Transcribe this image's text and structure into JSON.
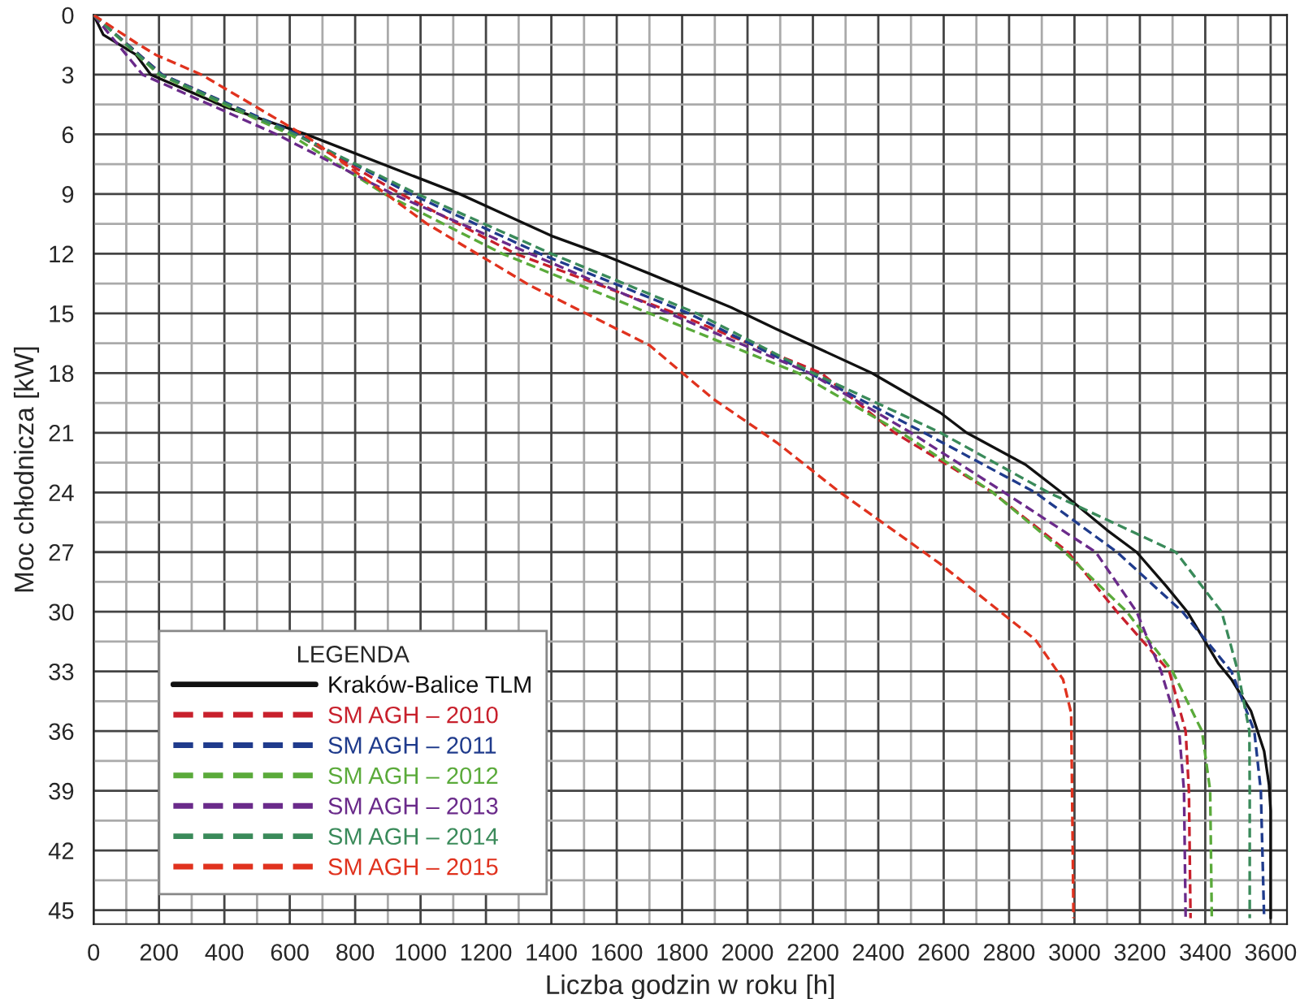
{
  "chart_data": {
    "type": "line",
    "xlabel": "Liczba godzin w roku [h]",
    "ylabel": "Moc chłodnicza [kW]",
    "legend_title": "LEGENDA",
    "legend": "bottom left",
    "grid": true,
    "line_style": "dashed",
    "marker": "none",
    "xlim": [
      0,
      3650
    ],
    "ylim": [
      45.7,
      0
    ],
    "xticks": [
      0,
      {
        "value": 100,
        "label": null
      },
      200,
      {
        "value": 300,
        "label": null
      },
      400,
      {
        "value": 500,
        "label": null
      },
      600,
      {
        "value": 700,
        "label": null
      },
      800,
      {
        "value": 900,
        "label": null
      },
      1000,
      {
        "value": 1100,
        "label": null
      },
      1200,
      {
        "value": 1300,
        "label": null
      },
      1400,
      {
        "value": 1500,
        "label": null
      },
      1600,
      {
        "value": 1700,
        "label": null
      },
      1800,
      {
        "value": 1900,
        "label": null
      },
      2000,
      {
        "value": 2100,
        "label": null
      },
      2200,
      {
        "value": 2300,
        "label": null
      },
      2400,
      {
        "value": 2500,
        "label": null
      },
      2600,
      {
        "value": 2700,
        "label": null
      },
      2800,
      {
        "value": 2900,
        "label": null
      },
      3000,
      {
        "value": 3100,
        "label": null
      },
      3200,
      {
        "value": 3300,
        "label": null
      },
      3400,
      {
        "value": 3500,
        "label": null
      },
      3600
    ],
    "yticks": [
      0,
      {
        "value": 1.5,
        "label": null
      },
      3,
      {
        "value": 4.5,
        "label": null
      },
      6,
      {
        "value": 7.5,
        "label": null
      },
      9,
      {
        "value": 10.5,
        "label": null
      },
      12,
      {
        "value": 13.5,
        "label": null
      },
      15,
      {
        "value": 16.5,
        "label": null
      },
      18,
      {
        "value": 19.5,
        "label": null
      },
      21,
      {
        "value": 22.5,
        "label": null
      },
      24,
      {
        "value": 25.5,
        "label": null
      },
      27,
      {
        "value": 28.5,
        "label": null
      },
      30,
      {
        "value": 31.5,
        "label": null
      },
      33,
      {
        "value": 34.5,
        "label": null
      },
      36,
      {
        "value": 37.5,
        "label": null
      },
      39,
      {
        "value": 40.5,
        "label": null
      },
      42,
      {
        "value": 43.5,
        "label": null
      },
      45
    ],
    "series": [
      {
        "name": "Kraków-Balice TLM",
        "color": "#111111",
        "line_style": "solid",
        "x": [
          0,
          30,
          130,
          175,
          400,
          650,
          1120,
          1400,
          1550,
          1700,
          1950,
          2090,
          2380,
          2590,
          2670,
          2850,
          2960,
          3100,
          3190,
          3280,
          3345,
          3440,
          3480,
          3540,
          3580,
          3595,
          3600,
          3600
        ],
        "values": [
          0,
          1.0,
          2.0,
          3.0,
          4.6,
          6.0,
          9.0,
          11.1,
          12.0,
          13.0,
          14.7,
          15.8,
          18.0,
          20.0,
          21.0,
          22.6,
          24.0,
          25.9,
          27.0,
          28.7,
          30.0,
          32.6,
          33.4,
          35.0,
          37.0,
          38.7,
          40.0,
          45.4
        ]
      },
      {
        "name": "SM AGH – 2010",
        "color": "#c8202c",
        "x": [
          0,
          210,
          620,
          940,
          1290,
          1780,
          2225,
          2450,
          2750,
          2980,
          3130,
          3290,
          3340,
          3350,
          3355
        ],
        "values": [
          0,
          3.0,
          6.0,
          9.0,
          12.0,
          15.0,
          18.0,
          21.0,
          24.0,
          27.0,
          30.0,
          33.0,
          36.0,
          39.0,
          45.4
        ]
      },
      {
        "name": "SM AGH – 2011",
        "color": "#1f3b8c",
        "x": [
          0,
          210,
          625,
          970,
          1365,
          1820,
          2190,
          2540,
          2880,
          3130,
          3330,
          3480,
          3550,
          3570,
          3580
        ],
        "values": [
          0,
          3.0,
          6.0,
          9.0,
          12.0,
          15.0,
          18.0,
          21.0,
          24.0,
          27.0,
          30.0,
          33.0,
          36.0,
          39.0,
          45.4
        ]
      },
      {
        "name": "SM AGH – 2012",
        "color": "#5aaa3a",
        "x": [
          0,
          200,
          600,
          890,
          1250,
          1700,
          2155,
          2470,
          2750,
          2970,
          3160,
          3300,
          3390,
          3415,
          3420
        ],
        "values": [
          0,
          3.0,
          6.0,
          9.0,
          12.0,
          15.0,
          18.0,
          21.0,
          24.0,
          27.0,
          30.0,
          33.0,
          36.0,
          39.0,
          45.4
        ]
      },
      {
        "name": "SM AGH – 2013",
        "color": "#6a2a8a",
        "x": [
          0,
          150,
          560,
          915,
          1335,
          1760,
          2190,
          2500,
          2785,
          3065,
          3190,
          3265,
          3320,
          3335,
          3340
        ],
        "values": [
          0,
          3.0,
          6.0,
          9.0,
          12.0,
          15.0,
          18.0,
          21.0,
          24.0,
          27.0,
          30.0,
          33.0,
          36.0,
          39.0,
          45.4
        ]
      },
      {
        "name": "SM AGH – 2014",
        "color": "#3a8a5a",
        "x": [
          0,
          205,
          615,
          990,
          1400,
          1845,
          2200,
          2590,
          2920,
          3310,
          3450,
          3500,
          3535,
          3536,
          3536
        ],
        "values": [
          0,
          3.0,
          6.0,
          9.0,
          12.0,
          15.0,
          18.0,
          21.0,
          24.0,
          27.0,
          30.0,
          33.0,
          36.0,
          39.0,
          45.4
        ]
      },
      {
        "name": "SM AGH – 2015",
        "color": "#e0321e",
        "x": [
          0,
          130,
          190,
          330,
          660,
          1020,
          1335,
          1700,
          1895,
          2090,
          2275,
          2590,
          2880,
          2965,
          2990,
          2997
        ],
        "values": [
          0,
          1.4,
          2.0,
          3.0,
          6.2,
          10.5,
          13.6,
          16.6,
          19.3,
          21.5,
          23.9,
          27.6,
          31.4,
          33.4,
          35.1,
          45.4
        ]
      }
    ]
  }
}
